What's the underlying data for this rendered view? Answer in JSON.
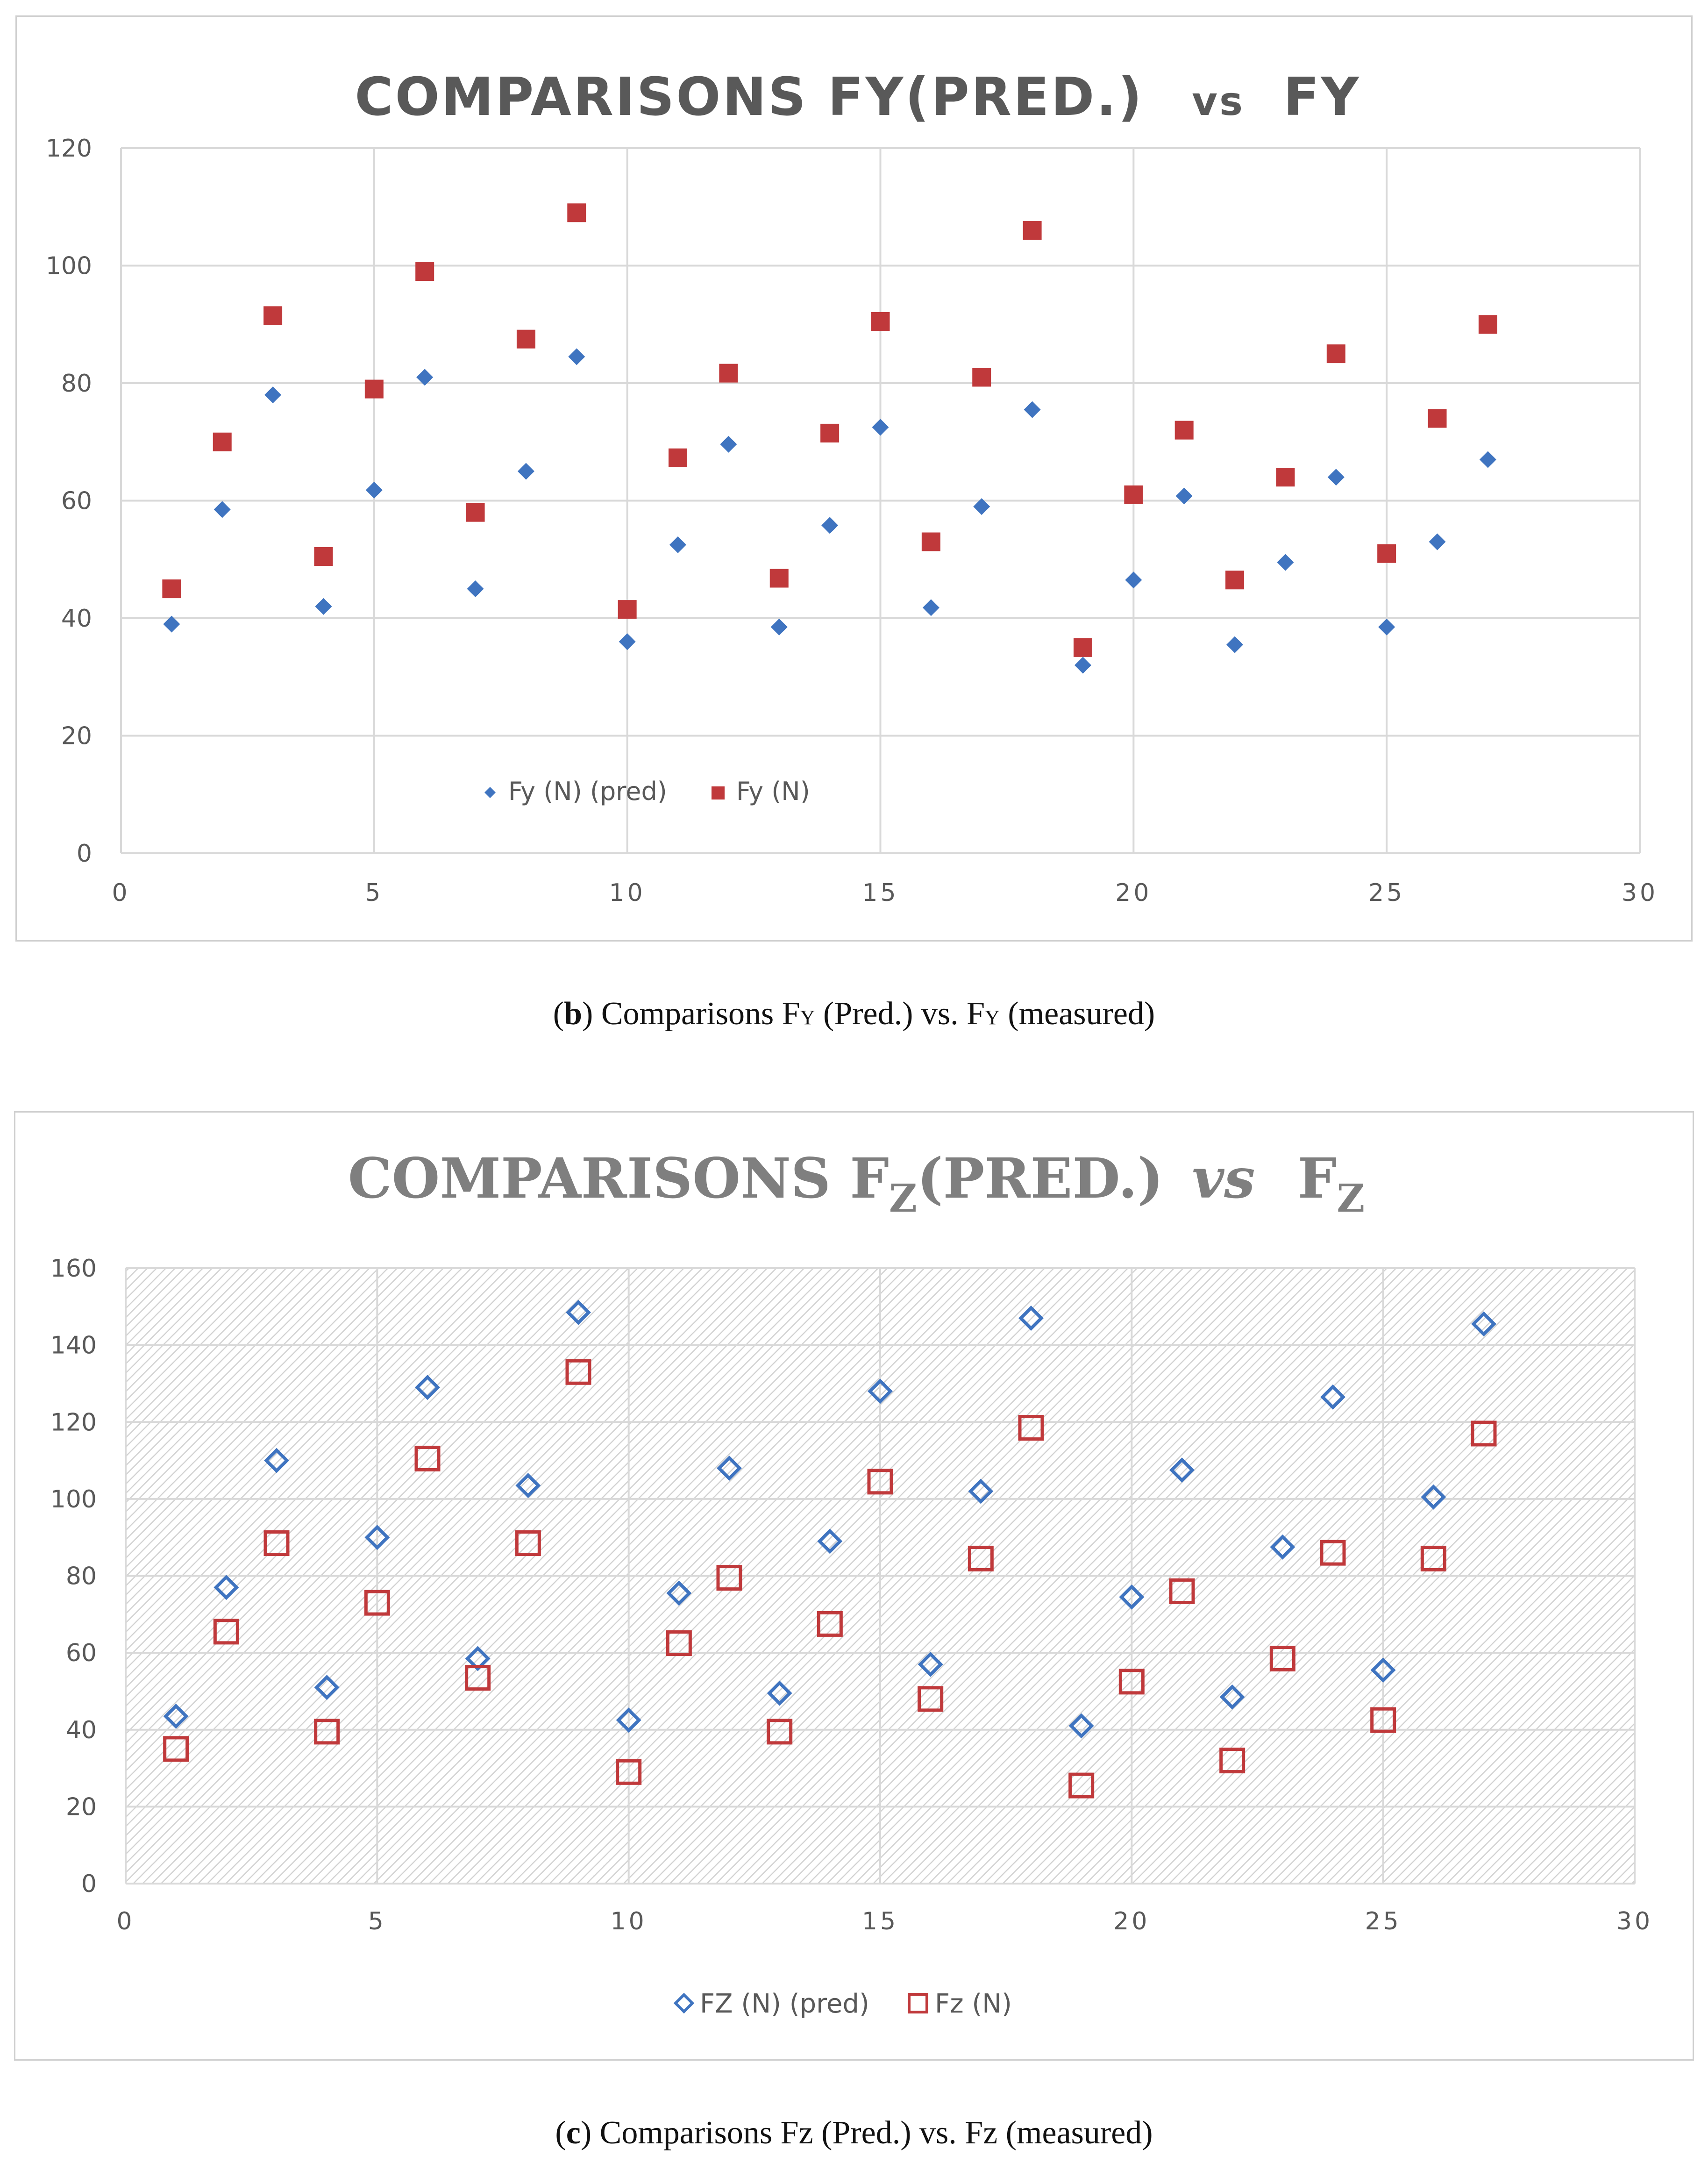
{
  "chart_data": [
    {
      "id": "b",
      "type": "scatter",
      "title": "COMPARISONS FY(PRED.)  vs  FY",
      "title_parts": {
        "a": "COMPARISONS FY(PRED.)",
        "vs": "vs",
        "b": "FY"
      },
      "xlim": [
        0,
        30
      ],
      "ylim": [
        0,
        120
      ],
      "xticks": [
        0,
        5,
        10,
        15,
        20,
        25,
        30
      ],
      "yticks": [
        0,
        20,
        40,
        60,
        80,
        100,
        120
      ],
      "grid": true,
      "legend_position": "inside-bottom-left",
      "series": [
        {
          "name": "Fy (N) (pred)",
          "marker": "filled-diamond",
          "color": "#3f74c0",
          "x": [
            1,
            2,
            3,
            4,
            5,
            6,
            7,
            8,
            9,
            10,
            11,
            12,
            13,
            14,
            15,
            16,
            17,
            18,
            19,
            20,
            21,
            22,
            23,
            24,
            25,
            26,
            27
          ],
          "y": [
            39,
            58.5,
            78,
            42,
            61.8,
            81,
            45,
            65,
            84.5,
            36,
            52.5,
            69.6,
            38.5,
            55.8,
            72.5,
            41.8,
            59,
            75.5,
            32,
            46.5,
            60.8,
            35.5,
            49.5,
            64,
            38.5,
            53,
            67
          ]
        },
        {
          "name": "Fy (N)",
          "marker": "filled-square",
          "color": "#c0393b",
          "x": [
            1,
            2,
            3,
            4,
            5,
            6,
            7,
            8,
            9,
            10,
            11,
            12,
            13,
            14,
            15,
            16,
            17,
            18,
            19,
            20,
            21,
            22,
            23,
            24,
            25,
            26,
            27
          ],
          "y": [
            45,
            70,
            91.5,
            50.5,
            79,
            99,
            58,
            87.5,
            109,
            41.5,
            67.3,
            81.7,
            46.8,
            71.5,
            90.5,
            53,
            81,
            106,
            35,
            61,
            72,
            46.5,
            64,
            85,
            51,
            74,
            90
          ]
        }
      ],
      "caption": {
        "label": "b",
        "text": " Comparisons F",
        "sub1": "Y",
        "mid": " (Pred.) vs. F",
        "sub2": "Y",
        "end": " (measured)"
      }
    },
    {
      "id": "c",
      "type": "scatter",
      "title": "COMPARISONS FZ(PRED.) VS  FZ",
      "title_parts": {
        "a": "COMPARISONS F",
        "sub_a": "Z",
        "a2": "(PRED.)",
        "vs": "vs",
        "b": "F",
        "sub_b": "Z"
      },
      "xlim": [
        0,
        30
      ],
      "ylim": [
        0,
        160
      ],
      "xticks": [
        0,
        5,
        10,
        15,
        20,
        25,
        30
      ],
      "yticks": [
        0,
        20,
        40,
        60,
        80,
        100,
        120,
        140,
        160
      ],
      "grid": true,
      "plot_background": "hatched",
      "legend_position": "bottom",
      "series": [
        {
          "name": "FZ (N) (pred)",
          "marker": "hollow-diamond",
          "color": "#3f74c0",
          "x": [
            1,
            2,
            3,
            4,
            5,
            6,
            7,
            8,
            9,
            10,
            11,
            12,
            13,
            14,
            15,
            16,
            17,
            18,
            19,
            20,
            21,
            22,
            23,
            24,
            25,
            26,
            27
          ],
          "y": [
            43.5,
            77,
            110,
            51,
            90,
            129,
            58.5,
            103.5,
            148.5,
            42.5,
            75.5,
            108,
            49.5,
            89,
            128,
            57,
            102,
            147,
            41,
            74.5,
            107.5,
            48.5,
            87.5,
            126.5,
            55.5,
            100.5,
            145.5
          ]
        },
        {
          "name": "Fz (N)",
          "marker": "hollow-square",
          "color": "#c0393b",
          "x": [
            1,
            2,
            3,
            4,
            5,
            6,
            7,
            8,
            9,
            10,
            11,
            12,
            13,
            14,
            15,
            16,
            17,
            18,
            19,
            20,
            21,
            22,
            23,
            24,
            25,
            26,
            27
          ],
          "y": [
            35,
            65.5,
            88.5,
            39.5,
            73,
            110.5,
            53.5,
            88.5,
            133,
            29,
            62.5,
            79.5,
            39.5,
            67.5,
            104.5,
            48,
            84.5,
            118.5,
            25.5,
            52.5,
            76,
            32,
            58.5,
            86,
            42.5,
            84.5,
            117
          ]
        }
      ],
      "caption": {
        "label": "c",
        "text": " Comparisons Fz (Pred.) vs. Fz (measured)"
      }
    }
  ]
}
